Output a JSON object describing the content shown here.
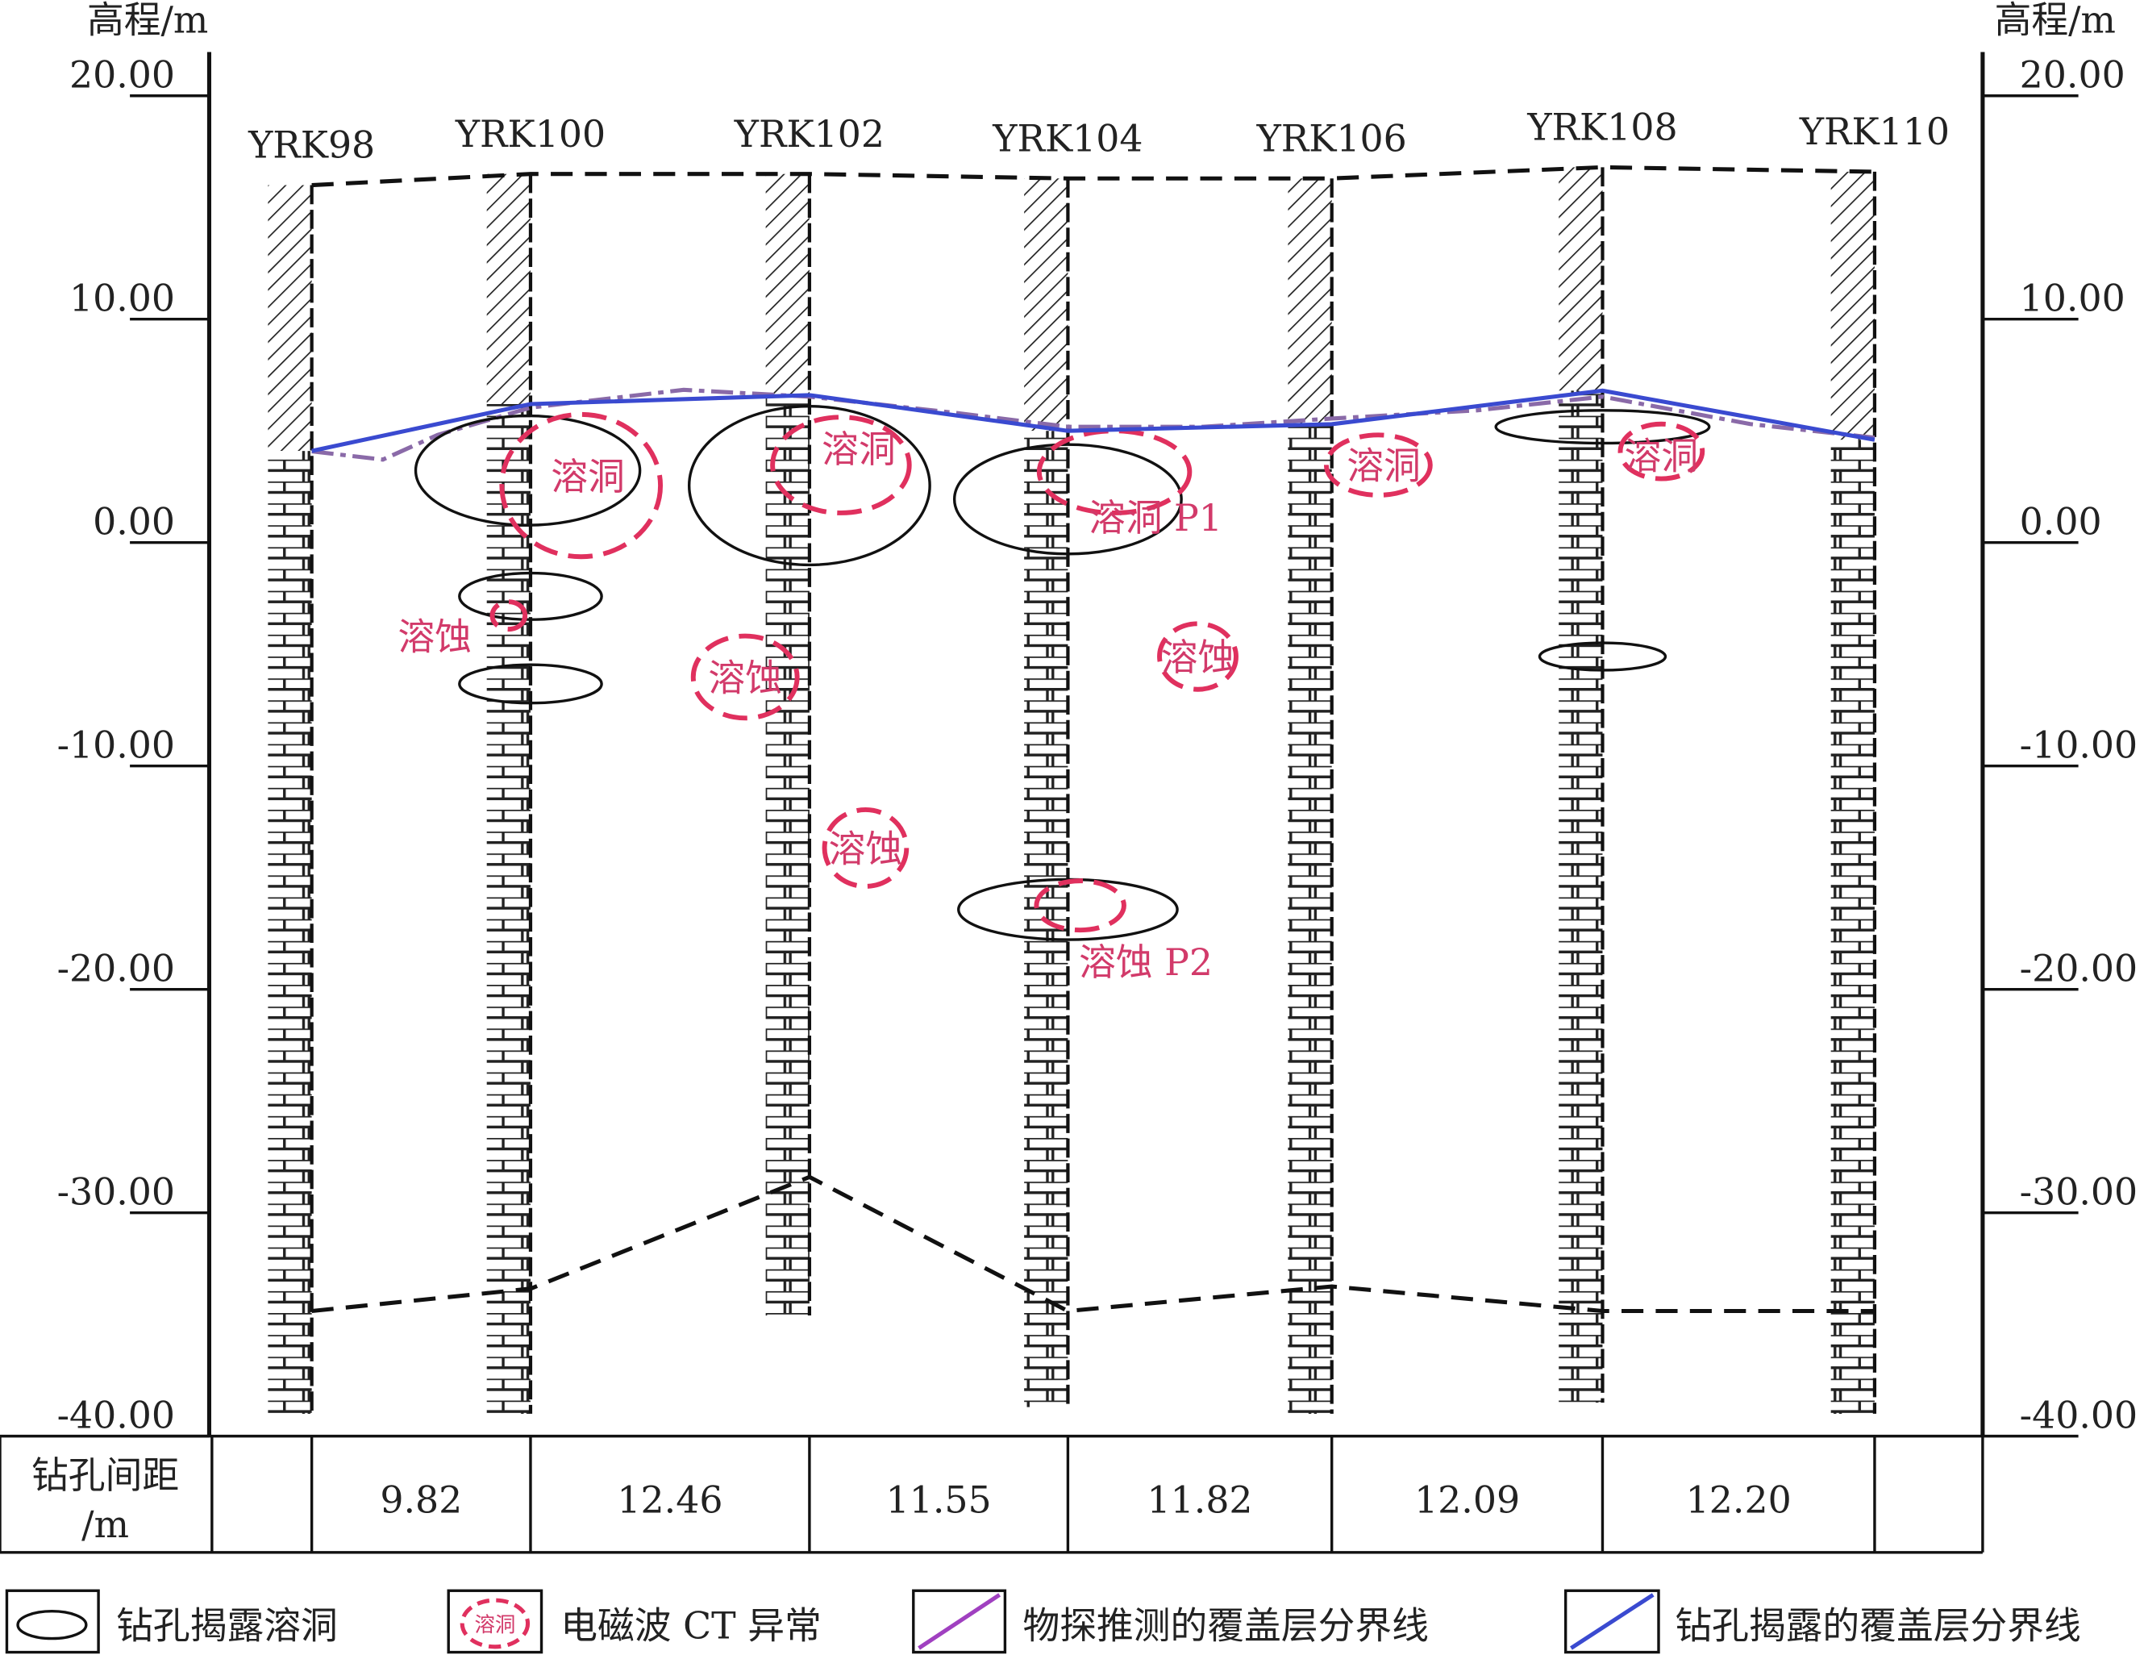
{
  "axis": {
    "title_left": "高程/m",
    "title_right": "高程/m",
    "ticks": [
      {
        "value": 20,
        "label": "20.00"
      },
      {
        "value": 10,
        "label": "10.00"
      },
      {
        "value": 0,
        "label": "0.00"
      },
      {
        "value": -10,
        "label": "-10.00"
      },
      {
        "value": -20,
        "label": "-20.00"
      },
      {
        "value": -30,
        "label": "-30.00"
      },
      {
        "value": -40,
        "label": "-40.00"
      }
    ]
  },
  "boreholes": [
    {
      "name": "YRK98",
      "top": 16.0,
      "rock": 4.1,
      "bottom": -39.0,
      "base": -34.4
    },
    {
      "name": "YRK100",
      "top": 16.5,
      "rock": 6.2,
      "bottom": -39.0,
      "base": -33.4
    },
    {
      "name": "YRK102",
      "top": 16.5,
      "rock": 6.6,
      "bottom": -34.6,
      "base": -28.4
    },
    {
      "name": "YRK104",
      "top": 16.3,
      "rock": 5.0,
      "bottom": -38.7,
      "base": -34.4
    },
    {
      "name": "YRK106",
      "top": 16.3,
      "rock": 5.3,
      "bottom": -39.0,
      "base": -33.3
    },
    {
      "name": "YRK108",
      "top": 16.8,
      "rock": 6.8,
      "bottom": -38.5,
      "base": -34.4
    },
    {
      "name": "YRK110",
      "top": 16.6,
      "rock": 4.6,
      "bottom": -39.0,
      "base": -34.4
    }
  ],
  "spacing": {
    "label_line1": "钻孔间距",
    "label_line2": "/m",
    "values": [
      "9.82",
      "12.46",
      "11.55",
      "11.82",
      "12.09",
      "12.20"
    ]
  },
  "annotations": [
    "溶洞",
    "溶蚀",
    "溶洞",
    "溶蚀",
    "溶蚀",
    "溶洞 P1",
    "溶蚀",
    "溶蚀 P2",
    "溶洞",
    "溶洞"
  ],
  "legend": [
    {
      "label": "钻孔揭露溶洞"
    },
    {
      "label": "电磁波 CT 异常",
      "icon_text": "溶洞"
    },
    {
      "label": "物探推测的覆盖层分界线"
    },
    {
      "label": "钻孔揭露的覆盖层分界线"
    }
  ]
}
